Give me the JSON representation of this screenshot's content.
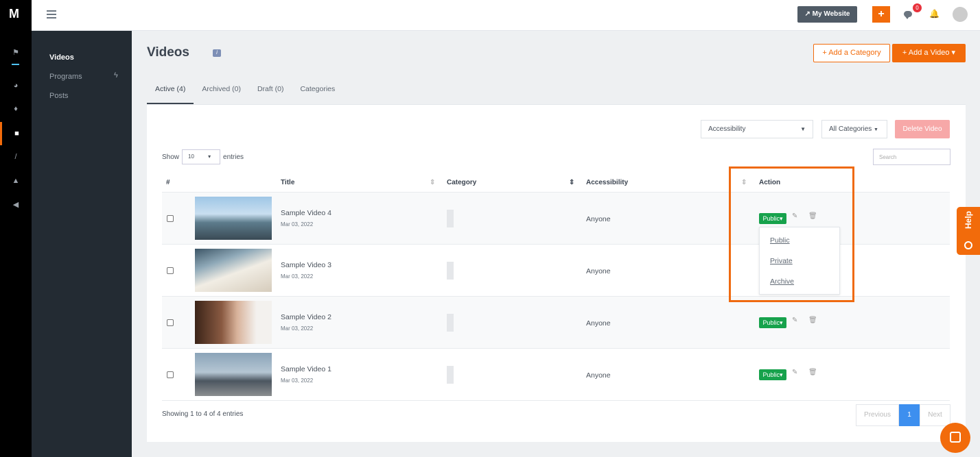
{
  "topbar": {
    "my_website": "My Website",
    "plus": "+",
    "notif_count": "0"
  },
  "sidebar": {
    "items": [
      {
        "label": "Videos"
      },
      {
        "label": "Programs"
      },
      {
        "label": "Posts"
      }
    ]
  },
  "page": {
    "title": "Videos",
    "info": "i",
    "add_category": "+ Add a Category",
    "add_video": "+ Add a Video ▾"
  },
  "tabs": [
    {
      "label": "Active (4)"
    },
    {
      "label": "Archived (0)"
    },
    {
      "label": "Draft (0)"
    },
    {
      "label": "Categories"
    }
  ],
  "filters": {
    "accessibility": "Accessibility",
    "categories": "All Categories",
    "delete": "Delete Video"
  },
  "table": {
    "show": "Show",
    "entries": "entries",
    "page_size": "10",
    "search_placeholder": "Search",
    "headers": {
      "num": "#",
      "title": "Title",
      "category": "Category",
      "accessibility": "Accessibility",
      "action": "Action"
    },
    "rows": [
      {
        "title": "Sample Video 4",
        "date": "Mar 03, 2022",
        "accessibility": "Anyone",
        "status": "Public"
      },
      {
        "title": "Sample Video 3",
        "date": "Mar 03, 2022",
        "accessibility": "Anyone",
        "status": "Public"
      },
      {
        "title": "Sample Video 2",
        "date": "Mar 03, 2022",
        "accessibility": "Anyone",
        "status": "Public"
      },
      {
        "title": "Sample Video 1",
        "date": "Mar 03, 2022",
        "accessibility": "Anyone",
        "status": "Public"
      }
    ],
    "dropdown": [
      "Public",
      "Private",
      "Archive"
    ],
    "footer": "Showing 1 to 4 of 4 entries",
    "pagination": {
      "previous": "Previous",
      "current": "1",
      "next": "Next"
    }
  },
  "help": "Help",
  "colors": {
    "accent": "#f26b0b",
    "public": "#17a24c"
  }
}
